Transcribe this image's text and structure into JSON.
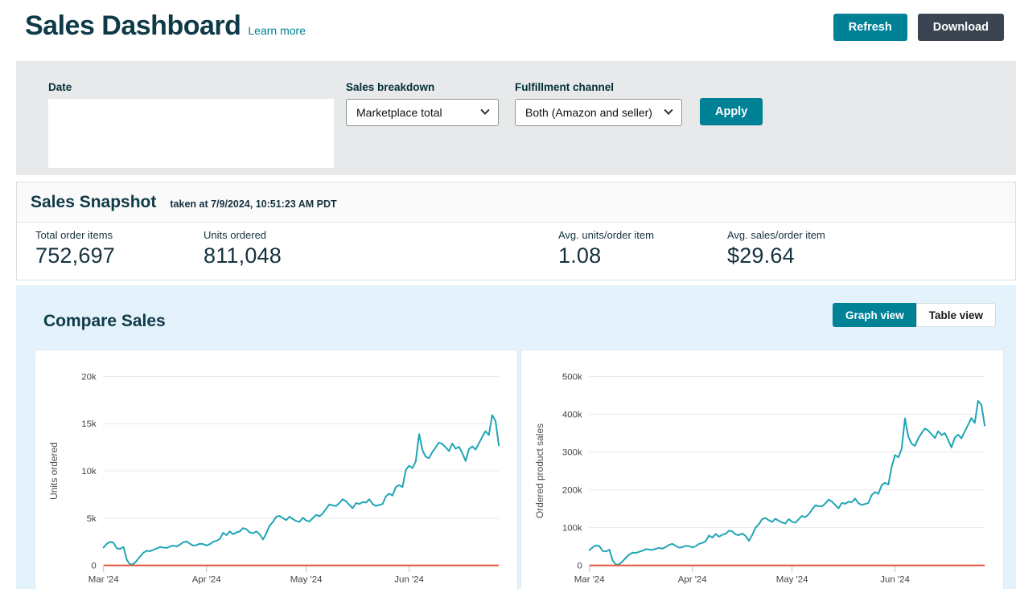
{
  "header": {
    "title": "Sales Dashboard",
    "learn_more": "Learn more",
    "refresh_label": "Refresh",
    "download_label": "Download"
  },
  "filters": {
    "date_label": "Date",
    "sales_breakdown_label": "Sales breakdown",
    "sales_breakdown_value": "Marketplace total",
    "fulfillment_label": "Fulfillment channel",
    "fulfillment_value": "Both (Amazon and seller)",
    "apply_label": "Apply"
  },
  "snapshot": {
    "title": "Sales Snapshot",
    "timestamp": "taken at 7/9/2024, 10:51:23 AM PDT",
    "stats": [
      {
        "label": "Total order items",
        "value": "752,697"
      },
      {
        "label": "Units ordered",
        "value": "811,048"
      },
      {
        "label": "Avg. units/order item",
        "value": "1.08"
      },
      {
        "label": "Avg. sales/order item",
        "value": "$29.64"
      }
    ]
  },
  "compare": {
    "title": "Compare Sales",
    "graph_view_label": "Graph view",
    "table_view_label": "Table view",
    "active_view": "Graph view"
  },
  "colors": {
    "accent_teal": "#008296",
    "dark_button": "#3b4552",
    "chart_line": "#1fa5b5",
    "comparison_line": "#e2573e",
    "compare_section_bg": "#e3f2fb",
    "filter_bar_bg": "#e8e9ea",
    "heading_text": "#0f3a47"
  },
  "chart_data": [
    {
      "type": "line",
      "title": "",
      "xlabel": "",
      "ylabel": "Units ordered",
      "ylim": [
        0,
        20000
      ],
      "grid": true,
      "legend": "none",
      "yticks": [
        {
          "value": 0,
          "label": "0"
        },
        {
          "value": 5000,
          "label": "5k"
        },
        {
          "value": 10000,
          "label": "10k"
        },
        {
          "value": 15000,
          "label": "15k"
        },
        {
          "value": 20000,
          "label": "20k"
        }
      ],
      "x_domain_days": [
        0,
        119
      ],
      "xticks": [
        {
          "day": 0,
          "label": "Mar '24"
        },
        {
          "day": 31,
          "label": "Apr '24"
        },
        {
          "day": 61,
          "label": "May '24"
        },
        {
          "day": 92,
          "label": "Jun '24"
        }
      ],
      "series": [
        {
          "color": "#1fa5b5",
          "values": [
            1900,
            2300,
            2500,
            2400,
            1800,
            1750,
            1950,
            600,
            80,
            150,
            500,
            950,
            1350,
            1550,
            1500,
            1650,
            1800,
            1950,
            1900,
            1850,
            2000,
            2100,
            2000,
            2200,
            2450,
            2550,
            2300,
            2100,
            2150,
            2300,
            2250,
            2100,
            2250,
            2500,
            2600,
            2800,
            3450,
            3200,
            3600,
            3300,
            3500,
            3600,
            3950,
            3850,
            3500,
            3400,
            3600,
            3300,
            2750,
            3400,
            4200,
            4600,
            5150,
            5250,
            5000,
            4800,
            5150,
            4900,
            4700,
            4600,
            5050,
            4750,
            4650,
            5000,
            5350,
            5200,
            5500,
            6000,
            6450,
            6350,
            6300,
            6600,
            7000,
            6800,
            6400,
            6050,
            6600,
            6500,
            6700,
            6650,
            7000,
            6500,
            6300,
            6400,
            6500,
            7300,
            7600,
            7400,
            8300,
            8500,
            8300,
            10100,
            10550,
            10300,
            11000,
            13900,
            12200,
            11500,
            11350,
            12000,
            12500,
            13000,
            12850,
            12500,
            12100,
            12900,
            12350,
            12550,
            11900,
            11050,
            12300,
            12600,
            12250,
            12900,
            13600,
            14200,
            13800,
            15900,
            15300,
            12700
          ]
        },
        {
          "color": "#e2573e",
          "constant_value": 0
        }
      ]
    },
    {
      "type": "line",
      "title": "",
      "xlabel": "",
      "ylabel": "Ordered product sales",
      "ylim": [
        0,
        500000
      ],
      "grid": true,
      "legend": "none",
      "yticks": [
        {
          "value": 0,
          "label": "0"
        },
        {
          "value": 100000,
          "label": "100k"
        },
        {
          "value": 200000,
          "label": "200k"
        },
        {
          "value": 300000,
          "label": "300k"
        },
        {
          "value": 400000,
          "label": "400k"
        },
        {
          "value": 500000,
          "label": "500k"
        }
      ],
      "x_domain_days": [
        0,
        119
      ],
      "xticks": [
        {
          "day": 0,
          "label": "Mar '24"
        },
        {
          "day": 31,
          "label": "Apr '24"
        },
        {
          "day": 61,
          "label": "May '24"
        },
        {
          "day": 92,
          "label": "Jun '24"
        }
      ],
      "series": [
        {
          "color": "#1fa5b5",
          "values": [
            40000,
            48000,
            53000,
            51000,
            38000,
            37000,
            41500,
            13000,
            2000,
            3200,
            11000,
            20500,
            29000,
            34000,
            33000,
            36000,
            39000,
            43000,
            42000,
            41000,
            44000,
            46500,
            44500,
            49000,
            54500,
            57000,
            51500,
            47000,
            48500,
            52000,
            51000,
            47500,
            51000,
            57000,
            59500,
            64000,
            79000,
            73500,
            83000,
            76000,
            81000,
            83500,
            92000,
            90000,
            82000,
            80000,
            84500,
            78000,
            65000,
            80500,
            99500,
            109000,
            122500,
            125500,
            119500,
            115000,
            123500,
            118000,
            113500,
            111000,
            122500,
            115500,
            113000,
            122000,
            131000,
            127500,
            135000,
            147500,
            159000,
            157000,
            156000,
            163500,
            174000,
            169000,
            159500,
            151000,
            165500,
            163000,
            168500,
            167500,
            177000,
            164500,
            160000,
            162500,
            165500,
            186000,
            194000,
            189500,
            213000,
            218500,
            214000,
            260500,
            292000,
            286000,
            308000,
            389000,
            341000,
            322000,
            316000,
            336000,
            350000,
            362000,
            357000,
            347000,
            337000,
            355000,
            345000,
            350000,
            332000,
            312000,
            338000,
            346000,
            336000,
            354000,
            372000,
            390000,
            377000,
            435000,
            425000,
            370000
          ]
        },
        {
          "color": "#e2573e",
          "constant_value": 0
        }
      ]
    }
  ]
}
